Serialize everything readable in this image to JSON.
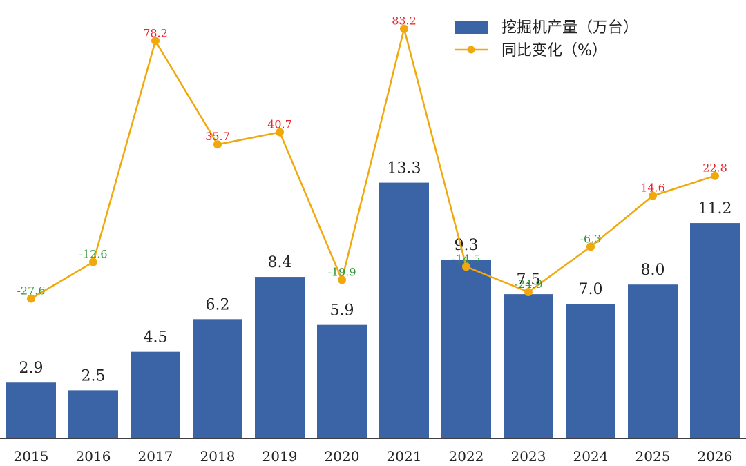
{
  "chart_data": {
    "type": "bar",
    "categories": [
      "2015",
      "2016",
      "2017",
      "2018",
      "2019",
      "2020",
      "2021",
      "2022",
      "2023",
      "2024",
      "2025",
      "2026"
    ],
    "series": [
      {
        "name": "挖掘机产量（万台）",
        "type": "bar",
        "values": [
          2.9,
          2.5,
          4.5,
          6.2,
          8.4,
          5.9,
          13.3,
          9.3,
          7.5,
          7.0,
          8.0,
          11.2
        ],
        "value_labels": [
          "2.9",
          "2.5",
          "4.5",
          "6.2",
          "8.4",
          "5.9",
          "13.3",
          "9.3",
          "7.5",
          "7.0",
          "8.0",
          "11.2"
        ],
        "color": "#3a64a6"
      },
      {
        "name": "同比变化（%）",
        "type": "line",
        "values": [
          -27.6,
          -12.6,
          78.2,
          35.7,
          40.7,
          -19.9,
          83.2,
          -14.5,
          -24.9,
          -6.3,
          14.6,
          22.8
        ],
        "value_labels": [
          "-27.6",
          "-12.6",
          "78.2",
          "35.7",
          "40.7",
          "-19.9",
          "83.2",
          "-14.5",
          "-24.9",
          "-6.3",
          "14.6",
          "22.8"
        ],
        "color": "#f0a80c"
      }
    ],
    "positive_label_color": "#e8232a",
    "negative_label_color": "#2e9a36",
    "bar_axis_range": [
      0,
      22.8
    ],
    "line_axis_range": [
      -85,
      95
    ],
    "legend_position": "top-right",
    "grid": false
  }
}
